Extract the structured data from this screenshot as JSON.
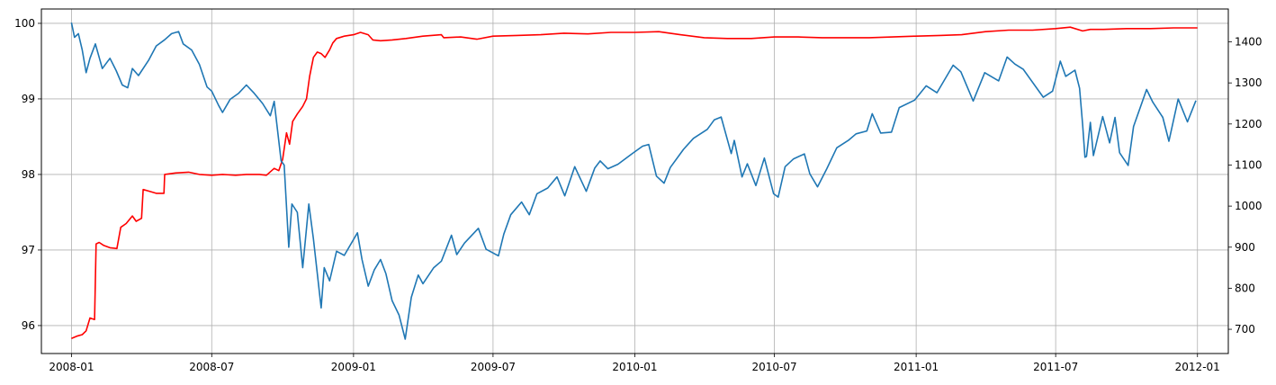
{
  "chart_data": {
    "type": "line",
    "title": "",
    "xlabel": "",
    "ylabel_left": "",
    "ylabel_right": "",
    "grid": true,
    "x_type": "date",
    "xlim": [
      "2007-11-23",
      "2012-02-10"
    ],
    "x_ticks": [
      "2008-01",
      "2008-07",
      "2009-01",
      "2009-07",
      "2010-01",
      "2010-07",
      "2011-01",
      "2011-07",
      "2012-01"
    ],
    "ylim_left": [
      95.63,
      100.19
    ],
    "y_ticks_left": [
      96,
      97,
      98,
      99,
      100
    ],
    "ylim_right": [
      641,
      1480
    ],
    "y_ticks_right": [
      700,
      800,
      900,
      1000,
      1100,
      1200,
      1300,
      1400
    ],
    "series": [
      {
        "axis": "left",
        "color": "#ff0000",
        "points": [
          [
            "2008-01-01",
            95.83
          ],
          [
            "2008-01-08",
            95.86
          ],
          [
            "2008-01-15",
            95.88
          ],
          [
            "2008-01-20",
            95.93
          ],
          [
            "2008-01-25",
            96.1
          ],
          [
            "2008-01-31",
            96.08
          ],
          [
            "2008-02-02",
            97.08
          ],
          [
            "2008-02-06",
            97.1
          ],
          [
            "2008-02-12",
            97.06
          ],
          [
            "2008-02-20",
            97.03
          ],
          [
            "2008-02-29",
            97.02
          ],
          [
            "2008-03-05",
            97.3
          ],
          [
            "2008-03-12",
            97.35
          ],
          [
            "2008-03-20",
            97.45
          ],
          [
            "2008-03-25",
            97.38
          ],
          [
            "2008-04-01",
            97.42
          ],
          [
            "2008-04-03",
            97.8
          ],
          [
            "2008-04-10",
            97.78
          ],
          [
            "2008-04-20",
            97.75
          ],
          [
            "2008-04-30",
            97.75
          ],
          [
            "2008-05-01",
            98.0
          ],
          [
            "2008-05-15",
            98.02
          ],
          [
            "2008-06-01",
            98.03
          ],
          [
            "2008-06-15",
            98.0
          ],
          [
            "2008-07-01",
            97.99
          ],
          [
            "2008-07-15",
            98.0
          ],
          [
            "2008-08-01",
            97.99
          ],
          [
            "2008-08-15",
            98.0
          ],
          [
            "2008-09-01",
            98.0
          ],
          [
            "2008-09-10",
            97.99
          ],
          [
            "2008-09-20",
            98.08
          ],
          [
            "2008-09-26",
            98.05
          ],
          [
            "2008-10-01",
            98.2
          ],
          [
            "2008-10-06",
            98.55
          ],
          [
            "2008-10-10",
            98.4
          ],
          [
            "2008-10-14",
            98.7
          ],
          [
            "2008-10-20",
            98.8
          ],
          [
            "2008-10-27",
            98.9
          ],
          [
            "2008-11-01",
            99.0
          ],
          [
            "2008-11-05",
            99.3
          ],
          [
            "2008-11-10",
            99.55
          ],
          [
            "2008-11-15",
            99.62
          ],
          [
            "2008-11-20",
            99.6
          ],
          [
            "2008-11-25",
            99.55
          ],
          [
            "2008-12-01",
            99.65
          ],
          [
            "2008-12-05",
            99.74
          ],
          [
            "2008-12-10",
            99.8
          ],
          [
            "2008-12-20",
            99.83
          ],
          [
            "2009-01-01",
            99.85
          ],
          [
            "2009-01-10",
            99.88
          ],
          [
            "2009-01-20",
            99.85
          ],
          [
            "2009-01-26",
            99.78
          ],
          [
            "2009-02-05",
            99.77
          ],
          [
            "2009-02-20",
            99.78
          ],
          [
            "2009-03-10",
            99.8
          ],
          [
            "2009-04-01",
            99.83
          ],
          [
            "2009-04-25",
            99.85
          ],
          [
            "2009-04-28",
            99.81
          ],
          [
            "2009-05-20",
            99.82
          ],
          [
            "2009-06-10",
            99.79
          ],
          [
            "2009-07-01",
            99.83
          ],
          [
            "2009-08-01",
            99.84
          ],
          [
            "2009-09-01",
            99.85
          ],
          [
            "2009-10-01",
            99.87
          ],
          [
            "2009-11-01",
            99.86
          ],
          [
            "2009-12-01",
            99.88
          ],
          [
            "2010-01-01",
            99.88
          ],
          [
            "2010-02-01",
            99.89
          ],
          [
            "2010-03-01",
            99.85
          ],
          [
            "2010-04-01",
            99.81
          ],
          [
            "2010-05-01",
            99.8
          ],
          [
            "2010-06-01",
            99.8
          ],
          [
            "2010-07-01",
            99.82
          ],
          [
            "2010-08-01",
            99.82
          ],
          [
            "2010-09-01",
            99.81
          ],
          [
            "2010-10-01",
            99.81
          ],
          [
            "2010-11-01",
            99.81
          ],
          [
            "2010-12-01",
            99.82
          ],
          [
            "2011-01-01",
            99.83
          ],
          [
            "2011-02-01",
            99.84
          ],
          [
            "2011-03-01",
            99.85
          ],
          [
            "2011-04-01",
            99.89
          ],
          [
            "2011-05-01",
            99.91
          ],
          [
            "2011-06-01",
            99.91
          ],
          [
            "2011-07-01",
            99.93
          ],
          [
            "2011-07-20",
            99.95
          ],
          [
            "2011-08-05",
            99.9
          ],
          [
            "2011-08-15",
            99.92
          ],
          [
            "2011-09-01",
            99.92
          ],
          [
            "2011-10-01",
            99.93
          ],
          [
            "2011-11-01",
            99.93
          ],
          [
            "2011-12-01",
            99.94
          ],
          [
            "2012-01-01",
            99.94
          ]
        ]
      },
      {
        "axis": "right",
        "color": "#1f77b4",
        "points": [
          [
            "2008-01-01",
            1447
          ],
          [
            "2008-01-05",
            1411
          ],
          [
            "2008-01-10",
            1420
          ],
          [
            "2008-01-15",
            1380
          ],
          [
            "2008-01-20",
            1325
          ],
          [
            "2008-01-25",
            1360
          ],
          [
            "2008-02-01",
            1395
          ],
          [
            "2008-02-10",
            1335
          ],
          [
            "2008-02-20",
            1360
          ],
          [
            "2008-02-28",
            1330
          ],
          [
            "2008-03-07",
            1295
          ],
          [
            "2008-03-14",
            1288
          ],
          [
            "2008-03-20",
            1335
          ],
          [
            "2008-03-28",
            1318
          ],
          [
            "2008-04-10",
            1355
          ],
          [
            "2008-04-20",
            1390
          ],
          [
            "2008-05-01",
            1405
          ],
          [
            "2008-05-10",
            1420
          ],
          [
            "2008-05-19",
            1425
          ],
          [
            "2008-05-25",
            1395
          ],
          [
            "2008-06-05",
            1380
          ],
          [
            "2008-06-15",
            1345
          ],
          [
            "2008-06-25",
            1290
          ],
          [
            "2008-07-01",
            1280
          ],
          [
            "2008-07-10",
            1245
          ],
          [
            "2008-07-15",
            1228
          ],
          [
            "2008-07-25",
            1260
          ],
          [
            "2008-08-05",
            1275
          ],
          [
            "2008-08-15",
            1295
          ],
          [
            "2008-08-25",
            1275
          ],
          [
            "2008-09-05",
            1250
          ],
          [
            "2008-09-15",
            1220
          ],
          [
            "2008-09-20",
            1255
          ],
          [
            "2008-09-29",
            1110
          ],
          [
            "2008-10-03",
            1100
          ],
          [
            "2008-10-09",
            900
          ],
          [
            "2008-10-13",
            1005
          ],
          [
            "2008-10-20",
            985
          ],
          [
            "2008-10-27",
            850
          ],
          [
            "2008-11-04",
            1005
          ],
          [
            "2008-11-10",
            920
          ],
          [
            "2008-11-20",
            752
          ],
          [
            "2008-11-24",
            850
          ],
          [
            "2008-12-01",
            818
          ],
          [
            "2008-12-10",
            890
          ],
          [
            "2008-12-20",
            880
          ],
          [
            "2009-01-06",
            935
          ],
          [
            "2009-01-12",
            870
          ],
          [
            "2009-01-20",
            805
          ],
          [
            "2009-01-28",
            845
          ],
          [
            "2009-02-05",
            870
          ],
          [
            "2009-02-12",
            835
          ],
          [
            "2009-02-20",
            770
          ],
          [
            "2009-03-01",
            735
          ],
          [
            "2009-03-09",
            676
          ],
          [
            "2009-03-17",
            778
          ],
          [
            "2009-03-26",
            832
          ],
          [
            "2009-04-01",
            811
          ],
          [
            "2009-04-15",
            850
          ],
          [
            "2009-04-25",
            866
          ],
          [
            "2009-05-08",
            929
          ],
          [
            "2009-05-15",
            882
          ],
          [
            "2009-05-25",
            910
          ],
          [
            "2009-06-12",
            946
          ],
          [
            "2009-06-22",
            895
          ],
          [
            "2009-07-08",
            879
          ],
          [
            "2009-07-15",
            932
          ],
          [
            "2009-07-24",
            979
          ],
          [
            "2009-08-07",
            1010
          ],
          [
            "2009-08-17",
            979
          ],
          [
            "2009-08-27",
            1030
          ],
          [
            "2009-09-10",
            1044
          ],
          [
            "2009-09-22",
            1071
          ],
          [
            "2009-10-02",
            1025
          ],
          [
            "2009-10-15",
            1096
          ],
          [
            "2009-10-30",
            1036
          ],
          [
            "2009-11-10",
            1093
          ],
          [
            "2009-11-17",
            1110
          ],
          [
            "2009-11-27",
            1091
          ],
          [
            "2009-12-10",
            1102
          ],
          [
            "2009-12-28",
            1127
          ],
          [
            "2010-01-11",
            1146
          ],
          [
            "2010-01-19",
            1150
          ],
          [
            "2010-01-29",
            1073
          ],
          [
            "2010-02-08",
            1056
          ],
          [
            "2010-02-16",
            1094
          ],
          [
            "2010-03-05",
            1138
          ],
          [
            "2010-03-18",
            1165
          ],
          [
            "2010-04-05",
            1187
          ],
          [
            "2010-04-14",
            1210
          ],
          [
            "2010-04-23",
            1217
          ],
          [
            "2010-05-06",
            1128
          ],
          [
            "2010-05-10",
            1160
          ],
          [
            "2010-05-20",
            1071
          ],
          [
            "2010-05-27",
            1103
          ],
          [
            "2010-06-07",
            1050
          ],
          [
            "2010-06-18",
            1117
          ],
          [
            "2010-06-30",
            1030
          ],
          [
            "2010-07-06",
            1022
          ],
          [
            "2010-07-15",
            1096
          ],
          [
            "2010-07-26",
            1115
          ],
          [
            "2010-08-09",
            1127
          ],
          [
            "2010-08-16",
            1079
          ],
          [
            "2010-08-26",
            1047
          ],
          [
            "2010-09-07",
            1091
          ],
          [
            "2010-09-20",
            1142
          ],
          [
            "2010-10-05",
            1160
          ],
          [
            "2010-10-15",
            1176
          ],
          [
            "2010-10-29",
            1183
          ],
          [
            "2010-11-05",
            1225
          ],
          [
            "2010-11-16",
            1178
          ],
          [
            "2010-11-30",
            1180
          ],
          [
            "2010-12-10",
            1240
          ],
          [
            "2010-12-30",
            1258
          ],
          [
            "2011-01-14",
            1293
          ],
          [
            "2011-01-28",
            1276
          ],
          [
            "2011-02-18",
            1343
          ],
          [
            "2011-02-28",
            1327
          ],
          [
            "2011-03-16",
            1256
          ],
          [
            "2011-03-31",
            1325
          ],
          [
            "2011-04-18",
            1305
          ],
          [
            "2011-04-29",
            1363
          ],
          [
            "2011-05-09",
            1346
          ],
          [
            "2011-05-20",
            1333
          ],
          [
            "2011-06-15",
            1265
          ],
          [
            "2011-06-27",
            1280
          ],
          [
            "2011-07-07",
            1353
          ],
          [
            "2011-07-14",
            1316
          ],
          [
            "2011-07-26",
            1331
          ],
          [
            "2011-08-01",
            1287
          ],
          [
            "2011-08-05",
            1199
          ],
          [
            "2011-08-08",
            1119
          ],
          [
            "2011-08-10",
            1121
          ],
          [
            "2011-08-15",
            1204
          ],
          [
            "2011-08-19",
            1123
          ],
          [
            "2011-08-31",
            1218
          ],
          [
            "2011-09-09",
            1154
          ],
          [
            "2011-09-16",
            1216
          ],
          [
            "2011-09-22",
            1130
          ],
          [
            "2011-10-03",
            1099
          ],
          [
            "2011-10-10",
            1194
          ],
          [
            "2011-10-27",
            1284
          ],
          [
            "2011-11-04",
            1253
          ],
          [
            "2011-11-17",
            1216
          ],
          [
            "2011-11-25",
            1158
          ],
          [
            "2011-12-07",
            1261
          ],
          [
            "2011-12-19",
            1205
          ],
          [
            "2011-12-30",
            1257
          ]
        ]
      }
    ]
  }
}
